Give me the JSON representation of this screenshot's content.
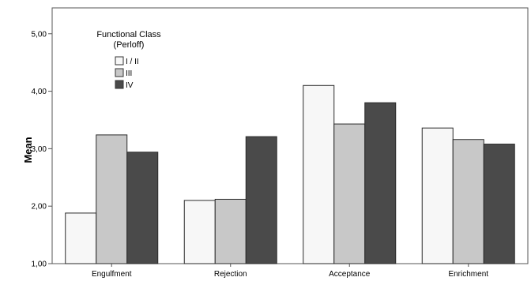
{
  "chart_data": {
    "type": "bar",
    "title": "",
    "xlabel": "",
    "ylabel": "Mean",
    "categories": [
      "Engulfment",
      "Rejection",
      "Acceptance",
      "Enrichment"
    ],
    "series": [
      {
        "name": "I / II",
        "values": [
          1.88,
          2.1,
          4.1,
          3.36
        ],
        "color": "#f7f7f7"
      },
      {
        "name": "III",
        "values": [
          3.24,
          2.12,
          3.43,
          3.16
        ],
        "color": "#c8c8c8"
      },
      {
        "name": "IV",
        "values": [
          2.94,
          3.21,
          3.8,
          3.08
        ],
        "color": "#4a4a4a"
      }
    ],
    "ylim": [
      1.0,
      5.45
    ],
    "yticks": [
      1.0,
      2.0,
      3.0,
      4.0,
      5.0
    ],
    "ytick_labels": [
      "1,00",
      "2,00",
      "3,00",
      "4,00",
      "5,00"
    ],
    "legend": {
      "title_line1": "Functional Class",
      "title_line2": "(Perloff)",
      "position": "top-left"
    },
    "grid": false
  }
}
